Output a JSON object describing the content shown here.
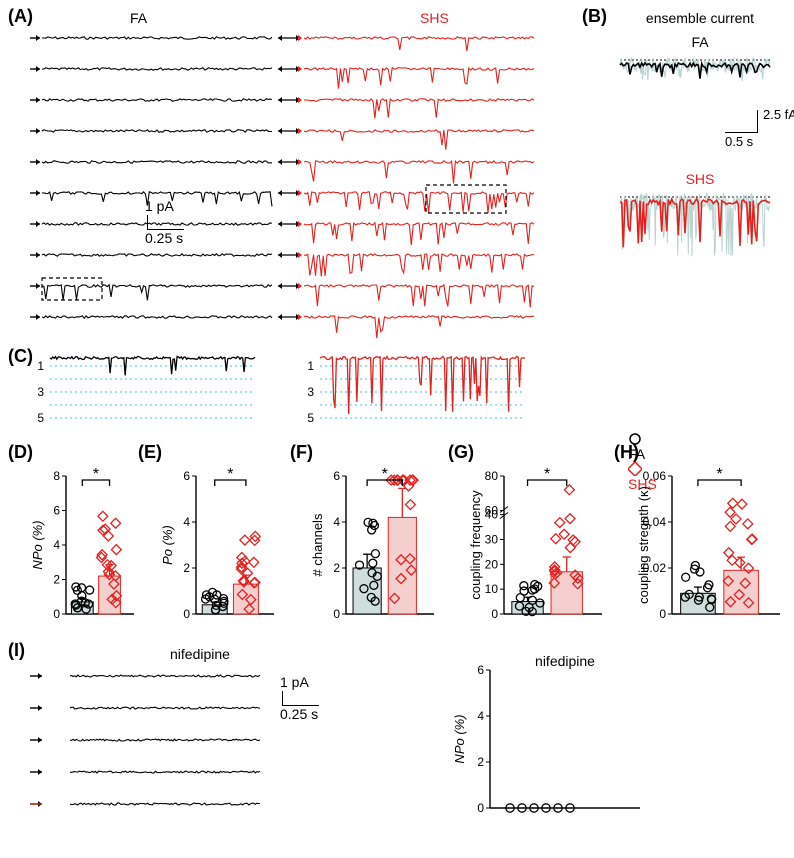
{
  "panels": {
    "A": {
      "label": "(A)",
      "fa_label": "FA",
      "shs_label": "SHS",
      "fa_color": "#000000",
      "shs_color": "#e3221f",
      "scale_x": "0.25 s",
      "scale_y": "1 pA",
      "n_traces": 10,
      "width_each": 230,
      "height_each": 20
    },
    "B": {
      "label": "(B)",
      "title": "ensemble current",
      "fa_label": "FA",
      "shs_label": "SHS",
      "scale_x": "0.5 s",
      "scale_y": "2.5 fA",
      "fa_color": "#000000",
      "shs_color": "#e3221f",
      "bg_color": "#b9d3d0"
    },
    "C": {
      "label": "(C)",
      "levels": [
        1,
        2,
        3,
        4,
        5
      ],
      "level_color": "#3fc3e8",
      "fa_color": "#000000",
      "shs_color": "#e3221f"
    },
    "D": {
      "label": "(D)",
      "ylabel": "NPo (%)",
      "ylim": [
        0,
        8
      ],
      "yticks": [
        0,
        2,
        4,
        6,
        8
      ],
      "fa_mean": 0.7,
      "shs_mean": 2.2,
      "sig": "*",
      "fa_color": "#cfdedd",
      "shs_color": "#f5cfce",
      "n_fa": 13,
      "n_shs": 17
    },
    "E": {
      "label": "(E)",
      "ylabel": "Po (%)",
      "ylim": [
        0,
        6
      ],
      "yticks": [
        0,
        2,
        4,
        6
      ],
      "fa_mean": 0.4,
      "shs_mean": 1.3,
      "sig": "*",
      "fa_color": "#cfdedd",
      "shs_color": "#f5cfce"
    },
    "F": {
      "label": "(F)",
      "ylabel": "# channels",
      "ylim": [
        0,
        6
      ],
      "yticks": [
        0,
        2,
        4,
        6
      ],
      "fa_mean": 2.0,
      "shs_mean": 4.2,
      "sig": "*",
      "fa_color": "#cfdedd",
      "shs_color": "#f5cfce"
    },
    "G": {
      "label": "(G)",
      "ylabel": "coupling frequency",
      "ylim": [
        0,
        80
      ],
      "yticks_lower": [
        0,
        10,
        20,
        30,
        40
      ],
      "yticks_upper": [
        60,
        80
      ],
      "break_at": 40,
      "fa_mean": 5,
      "shs_mean": 17,
      "sig": "*",
      "fa_color": "#cfdedd",
      "shs_color": "#f5cfce"
    },
    "H": {
      "label": "(H)",
      "ylabel": "coupling stregnth (κ)",
      "ylim": [
        0,
        0.06
      ],
      "yticks": [
        0,
        0.02,
        0.04,
        0.06
      ],
      "fa_mean": 0.009,
      "shs_mean": 0.019,
      "sig": "*",
      "fa_color": "#cfdedd",
      "shs_color": "#f5cfce"
    },
    "I": {
      "label": "(I)",
      "title": "nifedipine",
      "scale_x": "0.25 s",
      "scale_y": "1 pA",
      "n_traces": 5,
      "trace_color": "#000000",
      "plot_ylabel": "NPo (%)",
      "plot_ylim": [
        0,
        6
      ],
      "plot_yticks": [
        0,
        2,
        4,
        6
      ],
      "plot_title": "nifedipine",
      "n_points": 6
    }
  },
  "legend": {
    "fa_label": "FA",
    "shs_label": "SHS",
    "fa_marker_color": "#000000",
    "shs_marker_color": "#e3221f"
  }
}
